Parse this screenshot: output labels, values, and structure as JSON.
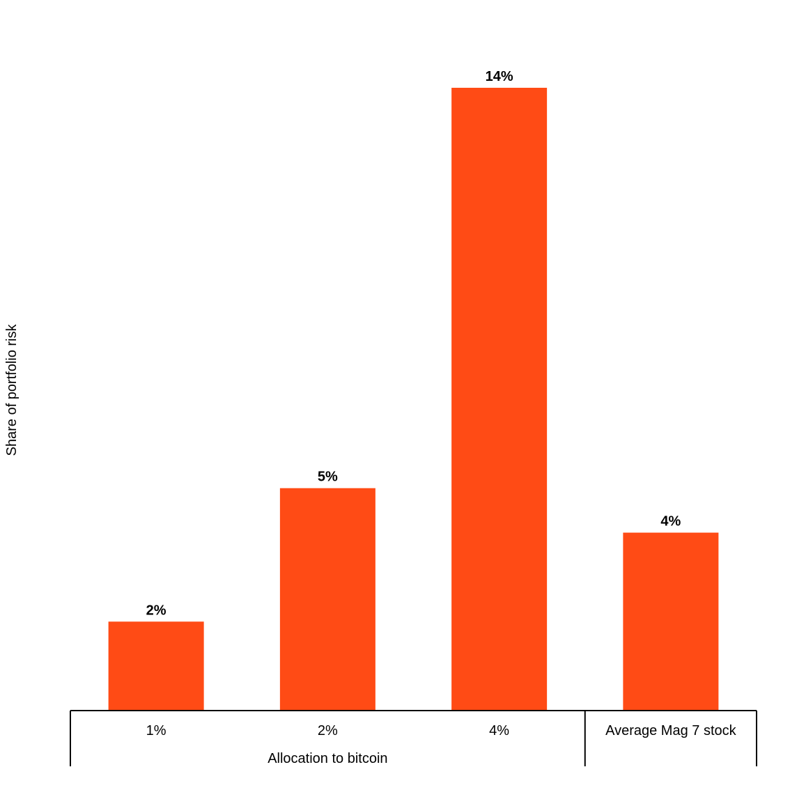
{
  "chart_data": {
    "type": "bar",
    "title": "",
    "ylabel": "Share of portfolio risk",
    "xlabel": "",
    "categories": [
      "1%",
      "2%",
      "4%",
      "Average Mag 7 stock"
    ],
    "values": [
      2,
      5,
      14,
      4
    ],
    "data_labels": [
      "2%",
      "5%",
      "14%",
      "4%"
    ],
    "category_groups": [
      {
        "label": "Allocation to bitcoin",
        "categories": [
          "1%",
          "2%",
          "4%"
        ]
      },
      {
        "label": "",
        "categories": [
          "Average Mag 7 stock"
        ]
      }
    ],
    "ylim": [
      0,
      14
    ],
    "grid": false,
    "legend": "none",
    "colors": {
      "bar": "#FF4B15",
      "axis": "#000000"
    }
  }
}
